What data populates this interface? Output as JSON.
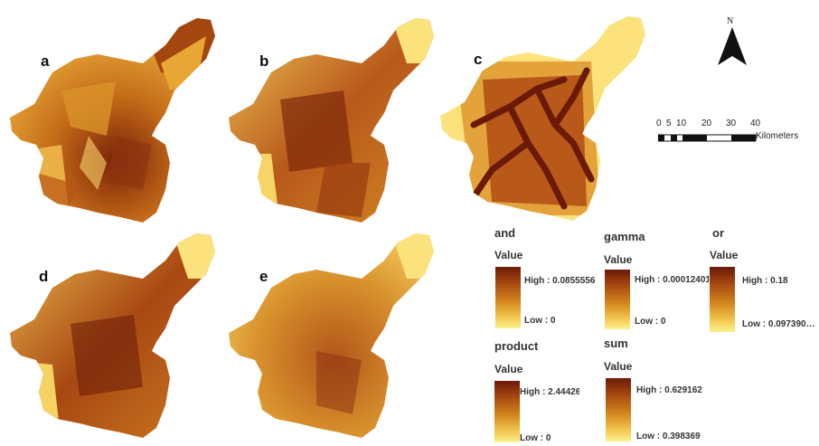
{
  "panels": [
    {
      "id": "a",
      "label": "a",
      "variant": "patchy"
    },
    {
      "id": "b",
      "label": "b",
      "variant": "textured"
    },
    {
      "id": "c",
      "label": "c",
      "variant": "distance"
    },
    {
      "id": "d",
      "label": "d",
      "variant": "textured"
    },
    {
      "id": "e",
      "label": "e",
      "variant": "smooth"
    }
  ],
  "north_arrow": {
    "letter": "N"
  },
  "scale_bar": {
    "ticks": [
      "0",
      "5",
      "10",
      "20",
      "30",
      "40"
    ],
    "unit": "Kilometers"
  },
  "legends": {
    "and": {
      "title": "and",
      "value_label": "Value",
      "high": "High : 0.0855556",
      "low": "Low : 0"
    },
    "gamma": {
      "title": "gamma",
      "value_label": "Value",
      "high": "High : 0.00012401",
      "low": "Low : 0"
    },
    "or": {
      "title": "or",
      "value_label": "Value",
      "high": "High : 0.18",
      "low": "Low : 0.097390…"
    },
    "product": {
      "title": "product",
      "value_label": "Value",
      "high": "High : 2.44426",
      "low": "Low : 0"
    },
    "sum": {
      "title": "sum",
      "value_label": "Value",
      "high": "High : 0.629162",
      "low": "Low : 0.398369"
    }
  },
  "colors": {
    "high": "#6b1a08",
    "mid": "#d2841d",
    "low": "#fdf28e"
  }
}
